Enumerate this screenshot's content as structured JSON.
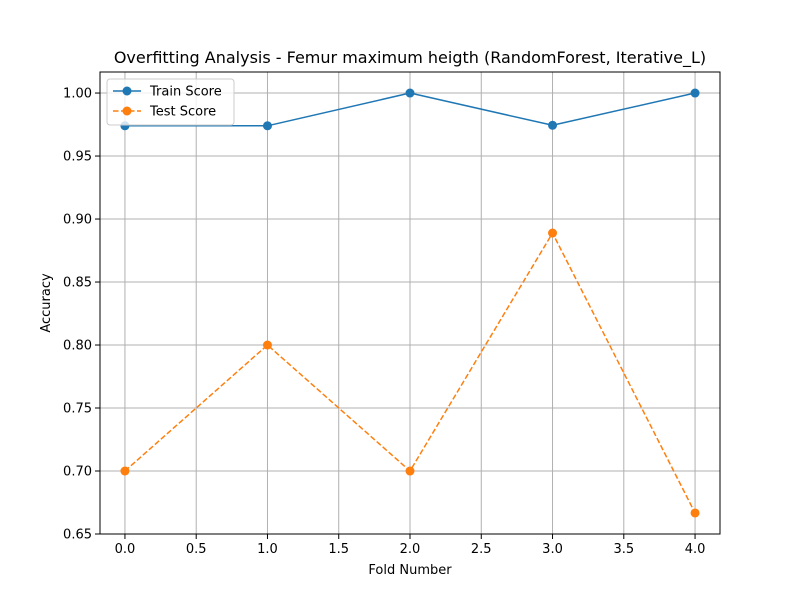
{
  "chart_data": {
    "type": "line",
    "title": "Overfitting Analysis - Femur maximum heigth (RandomForest, Iterative_L)",
    "xlabel": "Fold Number",
    "ylabel": "Accuracy",
    "xlim": [
      -0.175,
      4.175
    ],
    "ylim": [
      0.65,
      1.0167
    ],
    "xticks": [
      0.0,
      0.5,
      1.0,
      1.5,
      2.0,
      2.5,
      3.0,
      3.5,
      4.0
    ],
    "xtick_labels": [
      "0.0",
      "0.5",
      "1.0",
      "1.5",
      "2.0",
      "2.5",
      "3.0",
      "3.5",
      "4.0"
    ],
    "yticks": [
      0.65,
      0.7,
      0.75,
      0.8,
      0.85,
      0.9,
      0.95,
      1.0
    ],
    "ytick_labels": [
      "0.65",
      "0.70",
      "0.75",
      "0.80",
      "0.85",
      "0.90",
      "0.95",
      "1.00"
    ],
    "grid": true,
    "legend_position": "top-left",
    "x": [
      0,
      1,
      2,
      3,
      4
    ],
    "series": [
      {
        "name": "Train Score",
        "values": [
          0.974,
          0.974,
          1.0,
          0.9744,
          1.0
        ],
        "color": "#1f77b4",
        "line_style": "solid",
        "marker": "circle"
      },
      {
        "name": "Test Score",
        "values": [
          0.7,
          0.8,
          0.7,
          0.8889,
          0.6667
        ],
        "color": "#ff7f0e",
        "line_style": "dashed",
        "marker": "circle"
      }
    ]
  }
}
